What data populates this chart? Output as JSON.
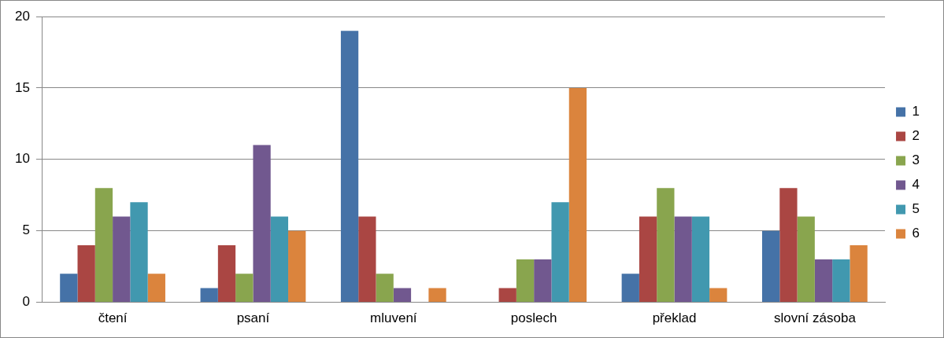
{
  "chart_data": {
    "type": "bar",
    "categories": [
      "čtení",
      "psaní",
      "mluvení",
      "poslech",
      "překlad",
      "slovní zásoba"
    ],
    "series": [
      {
        "name": "1",
        "color": "#4572a7",
        "values": [
          2,
          1,
          19,
          0,
          2,
          5
        ]
      },
      {
        "name": "2",
        "color": "#aa4643",
        "values": [
          4,
          4,
          6,
          1,
          6,
          8
        ]
      },
      {
        "name": "3",
        "color": "#89a54e",
        "values": [
          8,
          2,
          2,
          3,
          8,
          6
        ]
      },
      {
        "name": "4",
        "color": "#71588f",
        "values": [
          6,
          11,
          1,
          3,
          6,
          3
        ]
      },
      {
        "name": "5",
        "color": "#4198af",
        "values": [
          7,
          6,
          0,
          7,
          6,
          3
        ]
      },
      {
        "name": "6",
        "color": "#db843d",
        "values": [
          2,
          5,
          1,
          15,
          1,
          4
        ]
      }
    ],
    "ylim": [
      0,
      20
    ],
    "yticks": [
      0,
      5,
      10,
      15,
      20
    ],
    "grid": "y",
    "legend": "right"
  }
}
